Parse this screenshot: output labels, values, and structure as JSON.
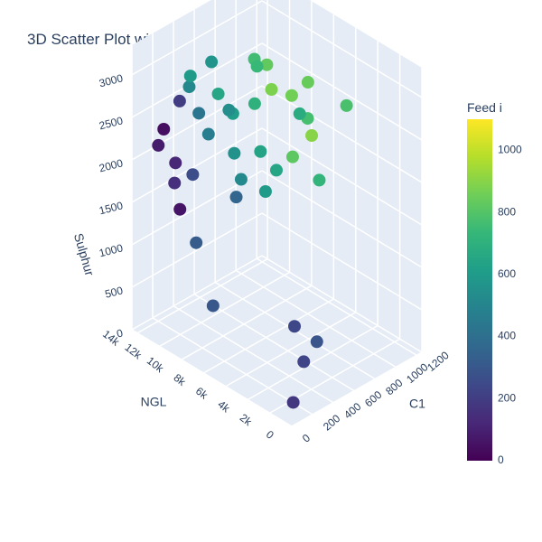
{
  "chart_data": {
    "type": "scatter",
    "title": "3D Scatter Plot with Feed i as Color",
    "x_axis": {
      "label": "C1",
      "ticks": [
        0,
        200,
        400,
        600,
        800,
        1000,
        1200
      ],
      "tick_labels": [
        "0",
        "200",
        "400",
        "600",
        "800",
        "1000",
        "1200"
      ],
      "range": [
        0,
        1250
      ]
    },
    "y_axis": {
      "label": "NGL",
      "ticks": [
        0,
        2000,
        4000,
        6000,
        8000,
        10000,
        12000,
        14000
      ],
      "tick_labels": [
        "0",
        "2k",
        "4k",
        "6k",
        "8k",
        "10k",
        "12k",
        "14k"
      ],
      "range": [
        0,
        14500
      ]
    },
    "z_axis": {
      "label": "Sulphur",
      "ticks": [
        0,
        500,
        1000,
        1500,
        2000,
        2500,
        3000
      ],
      "tick_labels": [
        "0",
        "500",
        "1000",
        "1500",
        "2000",
        "2500",
        "3000"
      ],
      "range": [
        0,
        3350
      ]
    },
    "color_axis": {
      "label": "Feed i",
      "ticks": [
        0,
        200,
        400,
        600,
        800,
        1000
      ],
      "tick_labels": [
        "0",
        "200",
        "400",
        "600",
        "800",
        "1000"
      ],
      "range": [
        0,
        1100
      ],
      "colorscale": "Viridis"
    },
    "grid": true,
    "points": [
      {
        "x": 120,
        "y": 1000,
        "z": 120,
        "c": 180
      },
      {
        "x": 380,
        "y": 2500,
        "z": 300,
        "c": 230
      },
      {
        "x": 400,
        "y": 1500,
        "z": 600,
        "c": 290
      },
      {
        "x": 250,
        "y": 9500,
        "z": 500,
        "c": 300
      },
      {
        "x": 450,
        "y": 4000,
        "z": 550,
        "c": 240
      },
      {
        "x": 300,
        "y": 11500,
        "z": 1050,
        "c": 320
      },
      {
        "x": 420,
        "y": 9000,
        "z": 1700,
        "c": 360
      },
      {
        "x": 700,
        "y": 8000,
        "z": 1900,
        "c": 650
      },
      {
        "x": 520,
        "y": 9500,
        "z": 1800,
        "c": 520
      },
      {
        "x": 950,
        "y": 4000,
        "z": 2800,
        "c": 780
      },
      {
        "x": 500,
        "y": 12000,
        "z": 3000,
        "c": 570
      },
      {
        "x": 820,
        "y": 10000,
        "z": 2900,
        "c": 830
      },
      {
        "x": 650,
        "y": 9500,
        "z": 2600,
        "c": 700
      },
      {
        "x": 600,
        "y": 11000,
        "z": 2400,
        "c": 610
      },
      {
        "x": 200,
        "y": 13500,
        "z": 2300,
        "c": 40
      },
      {
        "x": 180,
        "y": 13800,
        "z": 2100,
        "c": 80
      },
      {
        "x": 260,
        "y": 13000,
        "z": 1900,
        "c": 120
      },
      {
        "x": 230,
        "y": 12800,
        "z": 1700,
        "c": 150
      },
      {
        "x": 300,
        "y": 13000,
        "z": 2600,
        "c": 200
      },
      {
        "x": 750,
        "y": 7000,
        "z": 2100,
        "c": 820
      },
      {
        "x": 880,
        "y": 6500,
        "z": 2300,
        "c": 900
      },
      {
        "x": 900,
        "y": 8500,
        "z": 2600,
        "c": 860
      },
      {
        "x": 1000,
        "y": 8000,
        "z": 2300,
        "c": 770
      },
      {
        "x": 560,
        "y": 10500,
        "z": 2000,
        "c": 560
      },
      {
        "x": 480,
        "y": 11200,
        "z": 2700,
        "c": 650
      },
      {
        "x": 350,
        "y": 12500,
        "z": 2900,
        "c": 600
      },
      {
        "x": 620,
        "y": 9000,
        "z": 3100,
        "c": 740
      },
      {
        "x": 780,
        "y": 9200,
        "z": 2700,
        "c": 880
      },
      {
        "x": 450,
        "y": 11800,
        "z": 2200,
        "c": 470
      },
      {
        "x": 680,
        "y": 8800,
        "z": 1600,
        "c": 600
      },
      {
        "x": 900,
        "y": 6000,
        "z": 1800,
        "c": 720
      },
      {
        "x": 860,
        "y": 7400,
        "z": 2500,
        "c": 680
      },
      {
        "x": 540,
        "y": 10800,
        "z": 2500,
        "c": 540
      },
      {
        "x": 400,
        "y": 12200,
        "z": 2450,
        "c": 430
      },
      {
        "x": 320,
        "y": 12000,
        "z": 1800,
        "c": 260
      },
      {
        "x": 700,
        "y": 10000,
        "z": 3050,
        "c": 760
      },
      {
        "x": 950,
        "y": 7500,
        "z": 2800,
        "c": 840
      },
      {
        "x": 600,
        "y": 8500,
        "z": 2150,
        "c": 640
      },
      {
        "x": 360,
        "y": 12700,
        "z": 2750,
        "c": 520
      },
      {
        "x": 250,
        "y": 12500,
        "z": 1400,
        "c": 60
      }
    ]
  }
}
